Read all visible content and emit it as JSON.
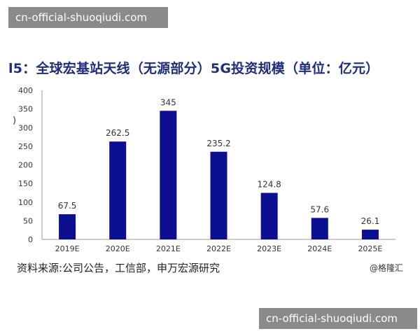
{
  "watermark": {
    "top": "cn-official-shuoqiudi.com",
    "bottom": "cn-official-shuoqiudi.com"
  },
  "title": "l5：全球宏基站天线（无源部分）5G投资规模（单位：亿元）",
  "source": "资料来源:公司公告，工信部，申万宏源研究",
  "credit": "@格隆汇",
  "axis_fragment": ")",
  "colors": {
    "bar": "#0d0f91",
    "title": "#1f2d7a",
    "axis": "#9a9a9a"
  },
  "chart_data": {
    "type": "bar",
    "categories": [
      "2019E",
      "2020E",
      "2021E",
      "2022E",
      "2023E",
      "2024E",
      "2025E"
    ],
    "values": [
      67.5,
      262.5,
      345,
      235.2,
      124.8,
      57.6,
      26.1
    ],
    "data_labels": [
      "67.5",
      "262.5",
      "345",
      "235.2",
      "124.8",
      "57.6",
      "26.1"
    ],
    "yticks": [
      0,
      50,
      100,
      150,
      200,
      250,
      300,
      350,
      400
    ],
    "ylim": [
      0,
      400
    ],
    "title": "l5：全球宏基站天线（无源部分）5G投资规模（单位：亿元）",
    "xlabel": "",
    "ylabel": "",
    "grid": false
  }
}
